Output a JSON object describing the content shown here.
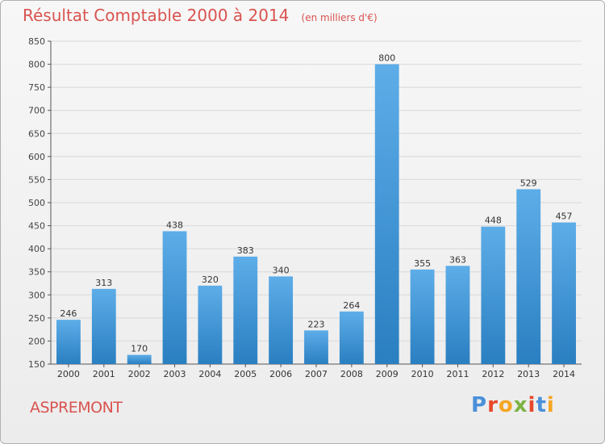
{
  "header": {
    "title": "Résultat Comptable 2000 à 2014",
    "subtitle": "(en milliers d'€)"
  },
  "footer": {
    "town": "ASPREMONT",
    "logo_text": "Proxiti"
  },
  "colors": {
    "title": "#d9534f",
    "bar_top": "#5dade8",
    "bar_bottom": "#2a7fc1",
    "grid": "#d8d8d8"
  },
  "chart_data": {
    "type": "bar",
    "title": "Résultat Comptable 2000 à 2014",
    "subtitle": "(en milliers d'€)",
    "xlabel": "",
    "ylabel": "",
    "ylim": [
      150,
      850
    ],
    "yticks": [
      150,
      200,
      250,
      300,
      350,
      400,
      450,
      500,
      550,
      600,
      650,
      700,
      750,
      800,
      850
    ],
    "grid": true,
    "categories": [
      "2000",
      "2001",
      "2002",
      "2003",
      "2004",
      "2005",
      "2006",
      "2007",
      "2008",
      "2009",
      "2010",
      "2011",
      "2012",
      "2013",
      "2014"
    ],
    "values": [
      246,
      313,
      170,
      438,
      320,
      383,
      340,
      223,
      264,
      800,
      355,
      363,
      448,
      529,
      457
    ]
  }
}
